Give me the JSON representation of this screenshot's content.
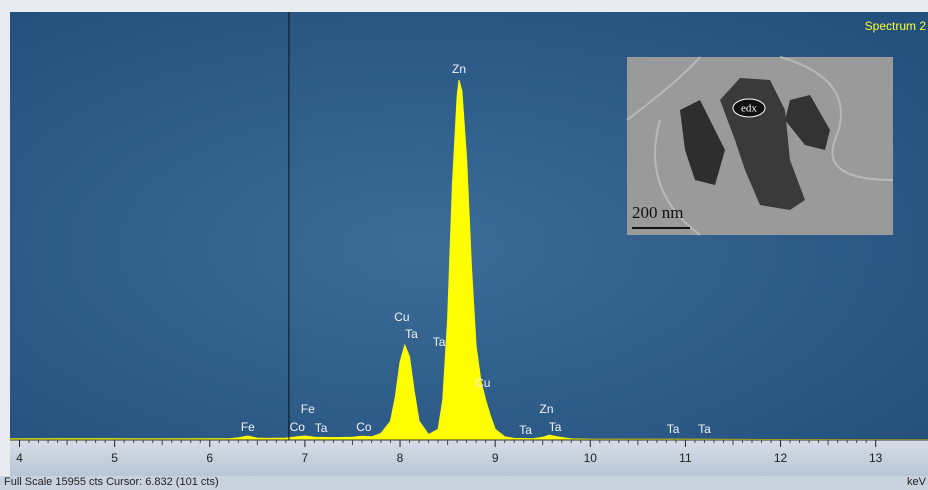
{
  "chart_data": {
    "type": "area",
    "title": "Spectrum 2",
    "x_label": "keV",
    "footer": "Full Scale 15955 cts Cursor: 6.832 (101 cts)",
    "color": "#ffff00",
    "x": [
      3.9,
      4.5,
      5.0,
      5.5,
      6.0,
      6.2,
      6.3,
      6.4,
      6.5,
      6.6,
      6.8,
      6.9,
      7.0,
      7.1,
      7.3,
      7.5,
      7.6,
      7.7,
      7.8,
      7.9,
      7.95,
      8.0,
      8.05,
      8.1,
      8.15,
      8.2,
      8.3,
      8.4,
      8.45,
      8.5,
      8.55,
      8.6,
      8.62,
      8.65,
      8.7,
      8.75,
      8.8,
      8.85,
      8.9,
      8.95,
      9.0,
      9.1,
      9.2,
      9.4,
      9.5,
      9.57,
      9.65,
      9.8,
      10.0,
      11.0,
      12.0,
      13.0,
      13.55
    ],
    "values": [
      40,
      50,
      45,
      40,
      45,
      50,
      80,
      150,
      70,
      60,
      70,
      110,
      150,
      100,
      90,
      100,
      140,
      120,
      250,
      700,
      1600,
      2900,
      3540,
      3100,
      1800,
      700,
      200,
      400,
      1500,
      4500,
      9500,
      12800,
      13420,
      13000,
      10500,
      6500,
      3500,
      2200,
      1500,
      900,
      400,
      120,
      60,
      50,
      100,
      180,
      120,
      40,
      30,
      25,
      20,
      15,
      15
    ],
    "xlim": [
      3.9,
      13.55
    ],
    "ylim": [
      0,
      15955
    ],
    "xticks": [
      4,
      5,
      6,
      7,
      8,
      9,
      10,
      11,
      12,
      13
    ],
    "cursor": 6.832,
    "annotations": [
      {
        "text": "Fe",
        "x": 6.4,
        "y": 447
      },
      {
        "text": "Co",
        "x": 6.92,
        "y": 450
      },
      {
        "text": "Fe",
        "x": 7.03,
        "y": 1118
      },
      {
        "text": "Ta",
        "x": 7.17,
        "y": 410
      },
      {
        "text": "Co",
        "x": 7.62,
        "y": 447
      },
      {
        "text": "Cu",
        "x": 8.02,
        "y": 4548
      },
      {
        "text": "Ta",
        "x": 8.12,
        "y": 3914
      },
      {
        "text": "Ta",
        "x": 8.41,
        "y": 3616
      },
      {
        "text": "Zn",
        "x": 8.62,
        "y": 13793
      },
      {
        "text": "Cu",
        "x": 8.87,
        "y": 2088
      },
      {
        "text": "Ta",
        "x": 9.32,
        "y": 335
      },
      {
        "text": "Zn",
        "x": 9.54,
        "y": 1118
      },
      {
        "text": "Ta",
        "x": 9.63,
        "y": 447
      },
      {
        "text": "Ta",
        "x": 10.87,
        "y": 373
      },
      {
        "text": "Ta",
        "x": 11.2,
        "y": 373
      }
    ],
    "inset": {
      "label": "edx",
      "scale_bar": "200 nm"
    }
  }
}
